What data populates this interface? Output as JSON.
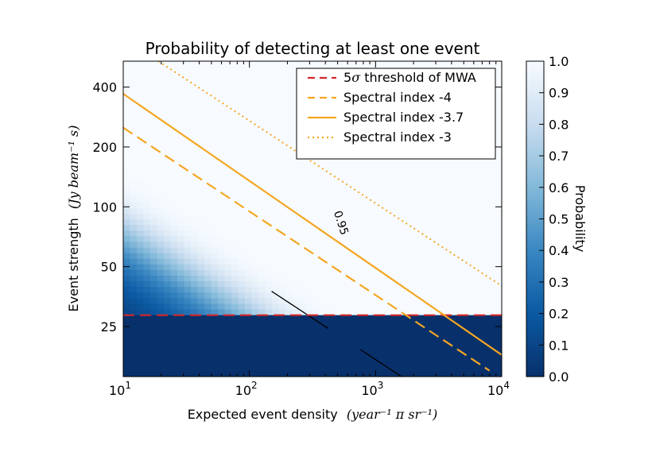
{
  "chart_data": {
    "type": "heatmap",
    "title": "Probability of detecting at least one event",
    "xlabel": "Expected event density",
    "xlabel_math": "(year⁻¹ π sr⁻¹)",
    "ylabel": "Event strength",
    "ylabel_math": "(Jy beam⁻¹ s)",
    "x_scale": "log",
    "y_scale": "log",
    "xlim": [
      10,
      10000
    ],
    "ylim": [
      14,
      540
    ],
    "x_ticks": [
      {
        "value": 10,
        "base": "10",
        "exp": "1"
      },
      {
        "value": 100,
        "base": "10",
        "exp": "2"
      },
      {
        "value": 1000,
        "base": "10",
        "exp": "3"
      },
      {
        "value": 10000,
        "base": "10",
        "exp": "4"
      }
    ],
    "y_ticks": [
      {
        "value": 25,
        "label": "25"
      },
      {
        "value": 50,
        "label": "50"
      },
      {
        "value": 100,
        "label": "100"
      },
      {
        "value": 200,
        "label": "200"
      },
      {
        "value": 400,
        "label": "400"
      }
    ],
    "colorbar": {
      "label": "Probability",
      "range": [
        0,
        1
      ],
      "colormap": "Blues_r",
      "ticks": [
        "0.0",
        "0.1",
        "0.2",
        "0.3",
        "0.4",
        "0.5",
        "0.6",
        "0.7",
        "0.8",
        "0.9",
        "1.0"
      ]
    },
    "contour": {
      "label": "0.95",
      "color": "#000000"
    },
    "threshold": 28.5,
    "series": [
      {
        "name": "5σ threshold of MWA",
        "style": "dashed",
        "color": "#d62728",
        "points": [
          [
            10,
            28.5
          ],
          [
            10000,
            28.5
          ]
        ]
      },
      {
        "name": "Spectral index -4",
        "style": "dashed",
        "color": "#f5a623",
        "points": [
          [
            10,
            250
          ],
          [
            8000,
            15
          ]
        ]
      },
      {
        "name": "Spectral index -3.7",
        "style": "solid",
        "color": "#f5a623",
        "points": [
          [
            10,
            370
          ],
          [
            10000,
            18
          ]
        ]
      },
      {
        "name": "Spectral index -3",
        "style": "dotted",
        "color": "#f5a623",
        "points": [
          [
            19,
            540
          ],
          [
            10000,
            40
          ]
        ]
      }
    ],
    "legend": {
      "position": "upper right",
      "sigma_prefix": "5",
      "sigma_symbol": "σ",
      "sigma_suffix": " threshold of MWA"
    }
  }
}
